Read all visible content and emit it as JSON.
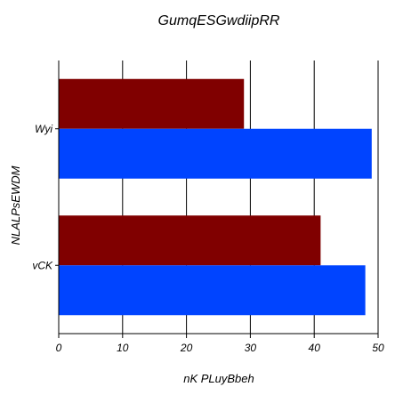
{
  "chart_data": {
    "type": "bar",
    "orientation": "horizontal",
    "title": "GumqESGwdiipRR",
    "xlabel": "nK PLuyBbeh",
    "ylabel": "NLALPsEWDM",
    "categories": [
      "Wyi",
      "vCK"
    ],
    "xlim": [
      0,
      50
    ],
    "xticks": [
      0,
      10,
      20,
      30,
      40,
      50
    ],
    "grid": "vertical",
    "legend": "none",
    "series": [
      {
        "color": "#800000",
        "values": [
          29,
          41
        ]
      },
      {
        "color": "#0044ff",
        "values": [
          49,
          48
        ]
      }
    ]
  }
}
